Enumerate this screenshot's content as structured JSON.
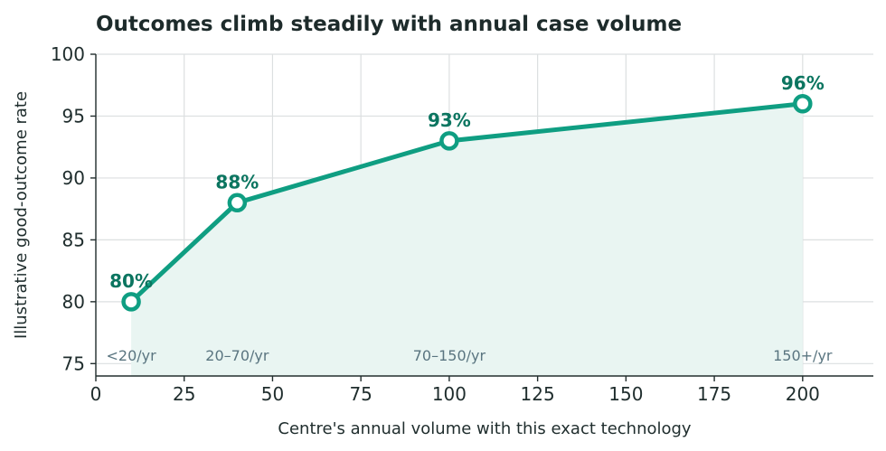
{
  "chart_data": {
    "type": "line",
    "title": "Outcomes climb steadily with annual case volume",
    "xlabel": "Centre's annual volume with this exact technology",
    "ylabel": "Illustrative good-outcome rate",
    "xlim": [
      0,
      220
    ],
    "ylim": [
      74,
      100
    ],
    "x_ticks": [
      0,
      25,
      50,
      75,
      100,
      125,
      150,
      175,
      200
    ],
    "y_ticks": [
      75,
      80,
      85,
      90,
      95,
      100
    ],
    "grid": true,
    "series": [
      {
        "x": [
          10,
          40,
          100,
          200
        ],
        "values": [
          80,
          88,
          93,
          96
        ],
        "point_labels": [
          "80%",
          "88%",
          "93%",
          "96%"
        ],
        "band_labels": [
          "<20/yr",
          "20–70/yr",
          "70–150/yr",
          "150+/yr"
        ]
      }
    ],
    "colors": {
      "line": "#0f9e82",
      "fill": "#e9f5f2",
      "label": "#0b7560",
      "band_label": "#5a7580"
    }
  }
}
